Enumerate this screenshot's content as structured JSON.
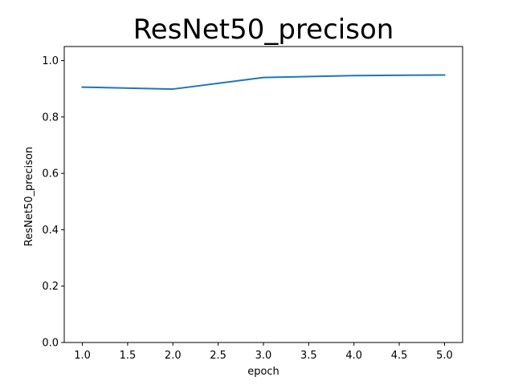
{
  "chart_data": {
    "type": "line",
    "title": "ResNet50_precison",
    "xlabel": "epoch",
    "ylabel": "ResNet50_precison",
    "xlim": [
      0.8,
      5.2
    ],
    "ylim": [
      0.0,
      1.05
    ],
    "xticks": [
      "1.0",
      "1.5",
      "2.0",
      "2.5",
      "3.0",
      "3.5",
      "4.0",
      "4.5",
      "5.0"
    ],
    "yticks": [
      "0.0",
      "0.2",
      "0.4",
      "0.6",
      "0.8",
      "1.0"
    ],
    "grid": false,
    "series": [
      {
        "color": "#1f77b4",
        "x": [
          1,
          2,
          3,
          4,
          5
        ],
        "y": [
          0.906,
          0.899,
          0.94,
          0.947,
          0.949
        ]
      }
    ]
  }
}
